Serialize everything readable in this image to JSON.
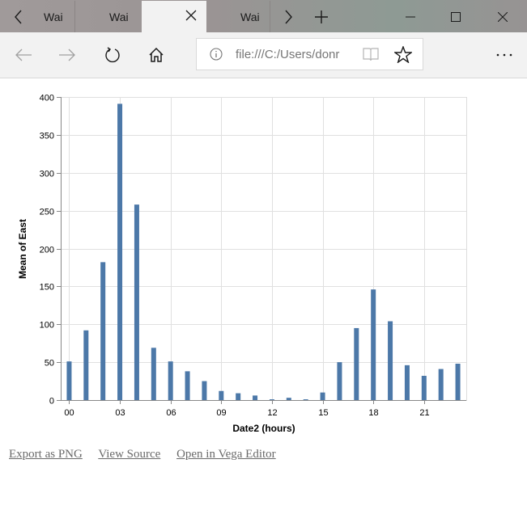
{
  "browser": {
    "tabs": [
      {
        "label": "Wai",
        "active": false
      },
      {
        "label": "Wai",
        "active": false
      },
      {
        "label": "",
        "active": true
      },
      {
        "label": "Wai",
        "active": false
      }
    ],
    "tab_scroll_left_icon": "chevron-left",
    "tab_scroll_right_icon": "chevron-right",
    "new_tab_icon": "plus",
    "window_controls": [
      "minimize",
      "maximize",
      "close"
    ],
    "address": "file:///C:/Users/donr",
    "nav_icons": [
      "back",
      "forward",
      "refresh",
      "home",
      "reading-view",
      "favorite",
      "more"
    ]
  },
  "links": {
    "export_png": "Export as PNG",
    "view_source": "View Source",
    "open_editor": "Open in Vega Editor"
  },
  "chart_data": {
    "type": "bar",
    "title": "",
    "xlabel": "Date2 (hours)",
    "ylabel": "Mean of East",
    "categories": [
      "00",
      "01",
      "02",
      "03",
      "04",
      "05",
      "06",
      "07",
      "08",
      "09",
      "10",
      "11",
      "12",
      "13",
      "14",
      "15",
      "16",
      "17",
      "18",
      "19",
      "20",
      "21",
      "22",
      "23"
    ],
    "values": [
      51,
      92,
      182,
      391,
      258,
      69,
      51,
      38,
      25,
      12,
      9,
      6,
      1,
      3,
      1,
      10,
      50,
      95,
      146,
      104,
      46,
      32,
      41,
      48
    ],
    "x_tick_labels": [
      "00",
      "03",
      "06",
      "09",
      "12",
      "15",
      "18",
      "21"
    ],
    "y_tick_labels": [
      "0",
      "50",
      "100",
      "150",
      "200",
      "250",
      "300",
      "350",
      "400"
    ],
    "ylim": [
      0,
      400
    ],
    "grid": true,
    "legend": null,
    "bar_color": "#4c78a8"
  }
}
